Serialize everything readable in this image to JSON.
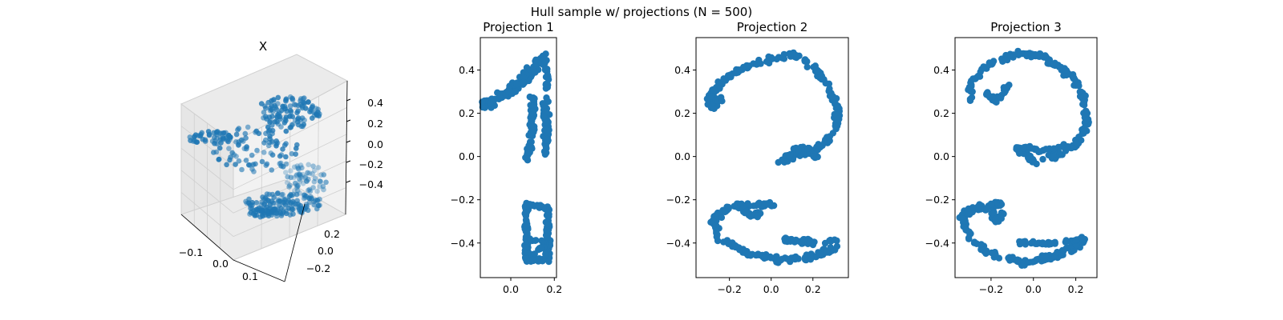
{
  "figure": {
    "suptitle": "Hull sample w/ projections (N = 500)"
  },
  "colors": {
    "points": "#1f77b4",
    "axes": "#000000",
    "pane_light": "#f2f2f2",
    "pane_mid": "#e6e6e6",
    "pane_dark": "#ebebeb",
    "grid": "#cfcfcf"
  },
  "chart_data": [
    {
      "type": "scatter3d",
      "title": "X",
      "x_ticks": [
        "−0.1",
        "0.0",
        "0.1"
      ],
      "y_ticks": [
        "−0.2",
        "0.0",
        "0.2"
      ],
      "z_ticks": [
        "0.4",
        "0.2",
        "0.0",
        "−0.2",
        "−0.4"
      ],
      "xlim": [
        -0.14,
        0.2
      ],
      "ylim": [
        -0.3,
        0.3
      ],
      "zlim": [
        -0.5,
        0.5
      ],
      "point_count": 500
    },
    {
      "type": "scatter",
      "title": "Projection 1",
      "xlim": [
        -0.14,
        0.21
      ],
      "ylim": [
        -0.56,
        0.55
      ],
      "x_ticks": [
        {
          "v": 0.0,
          "label": "0.0"
        },
        {
          "v": 0.2,
          "label": "0.2"
        }
      ],
      "y_ticks": [
        {
          "v": 0.4,
          "label": "0.4"
        },
        {
          "v": 0.2,
          "label": "0.2"
        },
        {
          "v": 0.0,
          "label": "0.0"
        },
        {
          "v": -0.2,
          "label": "−0.2"
        },
        {
          "v": -0.4,
          "label": "−0.4"
        }
      ],
      "point_count": 500,
      "shape": "digit-1"
    },
    {
      "type": "scatter",
      "title": "Projection 2",
      "xlim": [
        -0.36,
        0.37
      ],
      "ylim": [
        -0.56,
        0.55
      ],
      "x_ticks": [
        {
          "v": -0.2,
          "label": "−0.2"
        },
        {
          "v": 0.0,
          "label": "0.0"
        },
        {
          "v": 0.2,
          "label": "0.2"
        }
      ],
      "y_ticks": [
        {
          "v": 0.4,
          "label": "0.4"
        },
        {
          "v": 0.2,
          "label": "0.2"
        },
        {
          "v": 0.0,
          "label": "0.0"
        },
        {
          "v": -0.2,
          "label": "−0.2"
        },
        {
          "v": -0.4,
          "label": "−0.4"
        }
      ],
      "point_count": 500,
      "shape": "digit-2"
    },
    {
      "type": "scatter",
      "title": "Projection 3",
      "xlim": [
        -0.37,
        0.3
      ],
      "ylim": [
        -0.56,
        0.55
      ],
      "x_ticks": [
        {
          "v": -0.2,
          "label": "−0.2"
        },
        {
          "v": 0.0,
          "label": "0.0"
        },
        {
          "v": 0.2,
          "label": "0.2"
        }
      ],
      "y_ticks": [
        {
          "v": 0.4,
          "label": "0.4"
        },
        {
          "v": 0.2,
          "label": "0.2"
        },
        {
          "v": 0.0,
          "label": "0.0"
        },
        {
          "v": -0.2,
          "label": "−0.2"
        },
        {
          "v": -0.4,
          "label": "−0.4"
        }
      ],
      "point_count": 500,
      "shape": "digit-3"
    }
  ]
}
